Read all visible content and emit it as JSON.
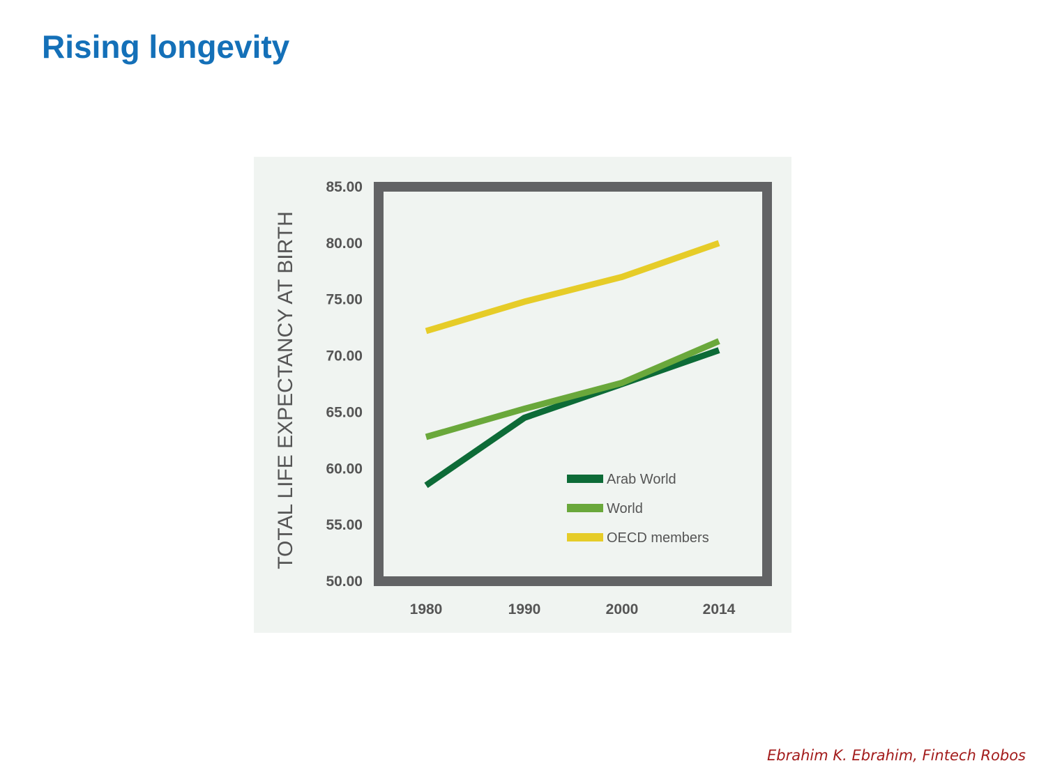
{
  "slide": {
    "title": "Rising longevity",
    "credit": "Ebrahim K. Ebrahim, Fintech Robos"
  },
  "colors": {
    "title": "#1470b8",
    "panel_background": "#f0f4f1",
    "plot_frame": "#626365",
    "axis_text": "#555555",
    "credit": "#a31c1c"
  },
  "chart_data": {
    "type": "line",
    "title": "",
    "xlabel": "",
    "ylabel": "TOTAL LIFE EXPECTANCY AT BIRTH",
    "categories": [
      "1980",
      "1990",
      "2000",
      "2014"
    ],
    "ylim": [
      50,
      85
    ],
    "y_ticks": [
      "50.00",
      "55.00",
      "60.00",
      "65.00",
      "70.00",
      "75.00",
      "80.00",
      "85.00"
    ],
    "grid": false,
    "legend_position": "bottom-right",
    "series": [
      {
        "name": "Arab World",
        "color": "#0d6b37",
        "values": [
          58.5,
          64.5,
          67.5,
          70.5
        ]
      },
      {
        "name": "World",
        "color": "#6aa83b",
        "values": [
          62.8,
          65.3,
          67.6,
          71.3
        ]
      },
      {
        "name": "OECD members",
        "color": "#e6cc28",
        "values": [
          72.2,
          74.8,
          77.0,
          80.0
        ]
      }
    ]
  }
}
